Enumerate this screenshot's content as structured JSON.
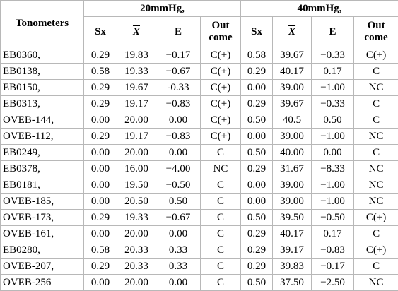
{
  "table": {
    "header": {
      "first": "Tonometers",
      "groups": [
        "20mmHg,",
        "40mmHg,"
      ],
      "columns": [
        "Sx",
        "X",
        "E",
        "Out come",
        "Sx",
        "X",
        "E",
        "Out come"
      ]
    },
    "rows": [
      [
        "EB0360,",
        "0.29",
        "19.83",
        "−0.17",
        "C(+)",
        "0.58",
        "39.67",
        "−0.33",
        "C(+)"
      ],
      [
        "EB0138,",
        "0.58",
        "19.33",
        "−0.67",
        "C(+)",
        "0.29",
        "40.17",
        "0.17",
        "C"
      ],
      [
        "EB0150,",
        "0.29",
        "19.67",
        "-0.33",
        "C(+)",
        "0.00",
        "39.00",
        "−1.00",
        "NC"
      ],
      [
        "EB0313,",
        "0.29",
        "19.17",
        "−0.83",
        "C(+)",
        "0.29",
        "39.67",
        "−0.33",
        "C"
      ],
      [
        "OVEB-144,",
        "0.00",
        "20.00",
        "0.00",
        "C(+)",
        "0.50",
        "40.5",
        "0.50",
        "C"
      ],
      [
        "OVEB-112,",
        "0.29",
        "19.17",
        "−0.83",
        "C(+)",
        "0.00",
        "39.00",
        "−1.00",
        "NC"
      ],
      [
        "EB0249,",
        "0.00",
        "20.00",
        "0.00",
        "C",
        "0.50",
        "40.00",
        "0.00",
        "C"
      ],
      [
        "EB0378,",
        "0.00",
        "16.00",
        "−4.00",
        "NC",
        "0.29",
        "31.67",
        "−8.33",
        "NC"
      ],
      [
        "EB0181,",
        "0.00",
        "19.50",
        "−0.50",
        "C",
        "0.00",
        "39.00",
        "−1.00",
        "NC"
      ],
      [
        "OVEB-185,",
        "0.00",
        "20.50",
        "0.50",
        "C",
        "0.00",
        "39.00",
        "−1.00",
        "NC"
      ],
      [
        "OVEB-173,",
        "0.29",
        "19.33",
        "−0.67",
        "C",
        "0.50",
        "39.50",
        "−0.50",
        "C(+)"
      ],
      [
        "OVEB-161,",
        "0.00",
        "20.00",
        "0.00",
        "C",
        "0.29",
        "40.17",
        "0.17",
        "C"
      ],
      [
        "EB0280,",
        "0.58",
        "20.33",
        "0.33",
        "C",
        "0.29",
        "39.17",
        "−0.83",
        "C(+)"
      ],
      [
        "OVEB-207,",
        "0.29",
        "20.33",
        "0.33",
        "C",
        "0.29",
        "39.83",
        "−0.17",
        "C"
      ],
      [
        "OVEB-256",
        "0.00",
        "20.00",
        "0.00",
        "C",
        "0.50",
        "37.50",
        "−2.50",
        "NC"
      ]
    ]
  }
}
